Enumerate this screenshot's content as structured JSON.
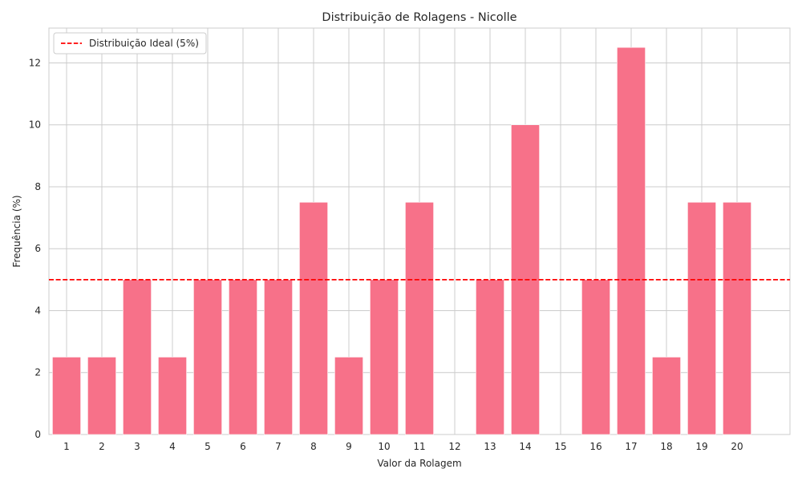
{
  "chart_data": {
    "type": "bar",
    "title": "Distribuição de Rolagens - Nicolle",
    "xlabel": "Valor da Rolagem",
    "ylabel": "Frequência (%)",
    "categories": [
      "1",
      "2",
      "3",
      "4",
      "5",
      "6",
      "7",
      "8",
      "9",
      "10",
      "11",
      "12",
      "13",
      "14",
      "15",
      "16",
      "17",
      "18",
      "19",
      "20"
    ],
    "values": [
      2.5,
      2.5,
      5,
      2.5,
      5,
      5,
      5,
      7.5,
      2.5,
      5,
      7.5,
      0,
      5,
      10,
      0,
      5,
      12.5,
      2.5,
      7.5,
      7.5
    ],
    "yticks": [
      "0",
      "2",
      "4",
      "6",
      "8",
      "10",
      "12"
    ],
    "ylim": [
      0,
      13.125
    ],
    "xlim": [
      -0.5,
      20.5
    ],
    "bar_color": "#f77189",
    "grid": true,
    "reference_line": {
      "value": 5,
      "label": "Distribuição Ideal (5%)",
      "color": "#ff0000",
      "style": "dashed"
    },
    "legend": {
      "placement": "top-left",
      "entries": [
        "Distribuição Ideal (5%)"
      ]
    }
  }
}
